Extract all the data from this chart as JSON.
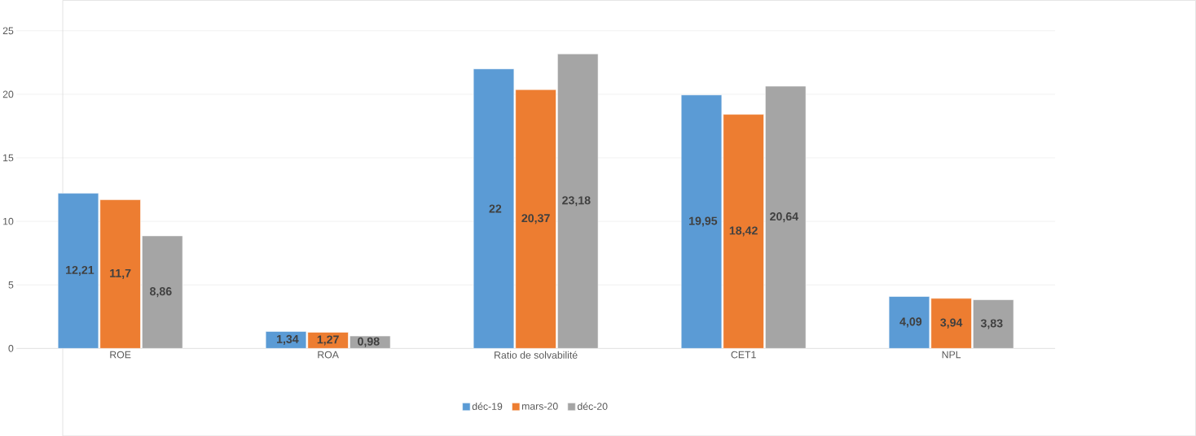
{
  "chart_data": {
    "type": "bar",
    "categories": [
      "ROE",
      "ROA",
      "Ratio de solvabilité",
      "CET1",
      "NPL"
    ],
    "series": [
      {
        "name": "déc-19",
        "color": "#5b9bd5",
        "values": [
          12.21,
          1.34,
          22,
          19.95,
          4.09
        ],
        "value_labels": [
          "12,21",
          "1,34",
          "22",
          "19,95",
          "4,09"
        ]
      },
      {
        "name": "mars-20",
        "color": "#ed7d31",
        "values": [
          11.7,
          1.27,
          20.37,
          18.42,
          3.94
        ],
        "value_labels": [
          "11,7",
          "1,27",
          "20,37",
          "18,42",
          "3,94"
        ]
      },
      {
        "name": "déc-20",
        "color": "#a5a5a5",
        "values": [
          8.86,
          0.98,
          23.18,
          20.64,
          3.83
        ],
        "value_labels": [
          "8,86",
          "0,98",
          "23,18",
          "20,64",
          "3,83"
        ]
      }
    ],
    "ylim": [
      0,
      25
    ],
    "yticks": [
      0,
      5,
      10,
      15,
      20,
      25
    ],
    "grid": "y",
    "legend": "bottom"
  }
}
